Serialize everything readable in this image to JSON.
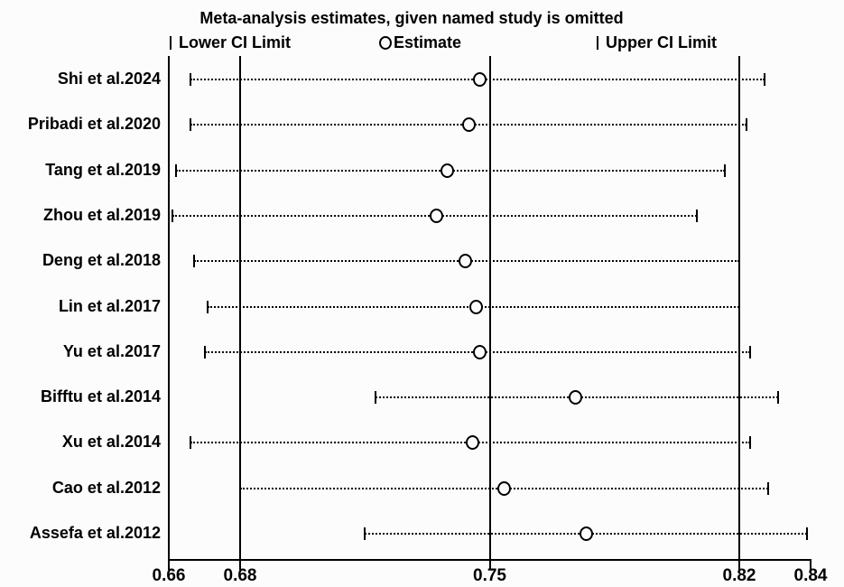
{
  "page": {
    "background": "#fcfcfc",
    "ink": "#000000"
  },
  "chart": {
    "title": "Meta-analysis estimates, given named study is omitted",
    "legend": [
      {
        "marker": "bracket-icon",
        "label": "Lower CI Limit"
      },
      {
        "marker": "circle-icon",
        "label": "Estimate"
      },
      {
        "marker": "bracket-icon",
        "label": "Upper CI Limit"
      }
    ]
  },
  "chart_data": {
    "type": "scatter",
    "subtype": "leave-one-out-sensitivity-plot",
    "title": "Meta-analysis estimates, given named study is omitted",
    "legend_position": "top",
    "grid": false,
    "xlim": [
      0.66,
      0.84
    ],
    "x_ticks": [
      {
        "value": 0.66,
        "label": "0.66"
      },
      {
        "value": 0.68,
        "label": "0.68"
      },
      {
        "value": 0.75,
        "label": "0.75"
      },
      {
        "value": 0.82,
        "label": "0.82"
      },
      {
        "value": 0.84,
        "label": "0.84"
      }
    ],
    "ref_lines": [
      0.68,
      0.75,
      0.82
    ],
    "y_axis_at": 0.66,
    "studies": [
      {
        "label": "Shi et al.2024",
        "lower": 0.666,
        "estimate": 0.747,
        "upper": 0.827
      },
      {
        "label": "Pribadi et al.2020",
        "lower": 0.666,
        "estimate": 0.744,
        "upper": 0.822
      },
      {
        "label": "Tang et al.2019",
        "lower": 0.662,
        "estimate": 0.738,
        "upper": 0.816
      },
      {
        "label": "Zhou et al.2019",
        "lower": 0.661,
        "estimate": 0.735,
        "upper": 0.808
      },
      {
        "label": "Deng et al.2018",
        "lower": 0.667,
        "estimate": 0.743,
        "upper": 0.82
      },
      {
        "label": "Lin et al.2017",
        "lower": 0.671,
        "estimate": 0.746,
        "upper": 0.82
      },
      {
        "label": "Yu et al.2017",
        "lower": 0.67,
        "estimate": 0.747,
        "upper": 0.823
      },
      {
        "label": "Bifftu et al.2014",
        "lower": 0.718,
        "estimate": 0.774,
        "upper": 0.831
      },
      {
        "label": "Xu et al.2014",
        "lower": 0.666,
        "estimate": 0.745,
        "upper": 0.823
      },
      {
        "label": "Cao et al.2012",
        "lower": 0.68,
        "estimate": 0.754,
        "upper": 0.828
      },
      {
        "label": "Assefa et al.2012",
        "lower": 0.715,
        "estimate": 0.777,
        "upper": 0.839
      }
    ]
  }
}
